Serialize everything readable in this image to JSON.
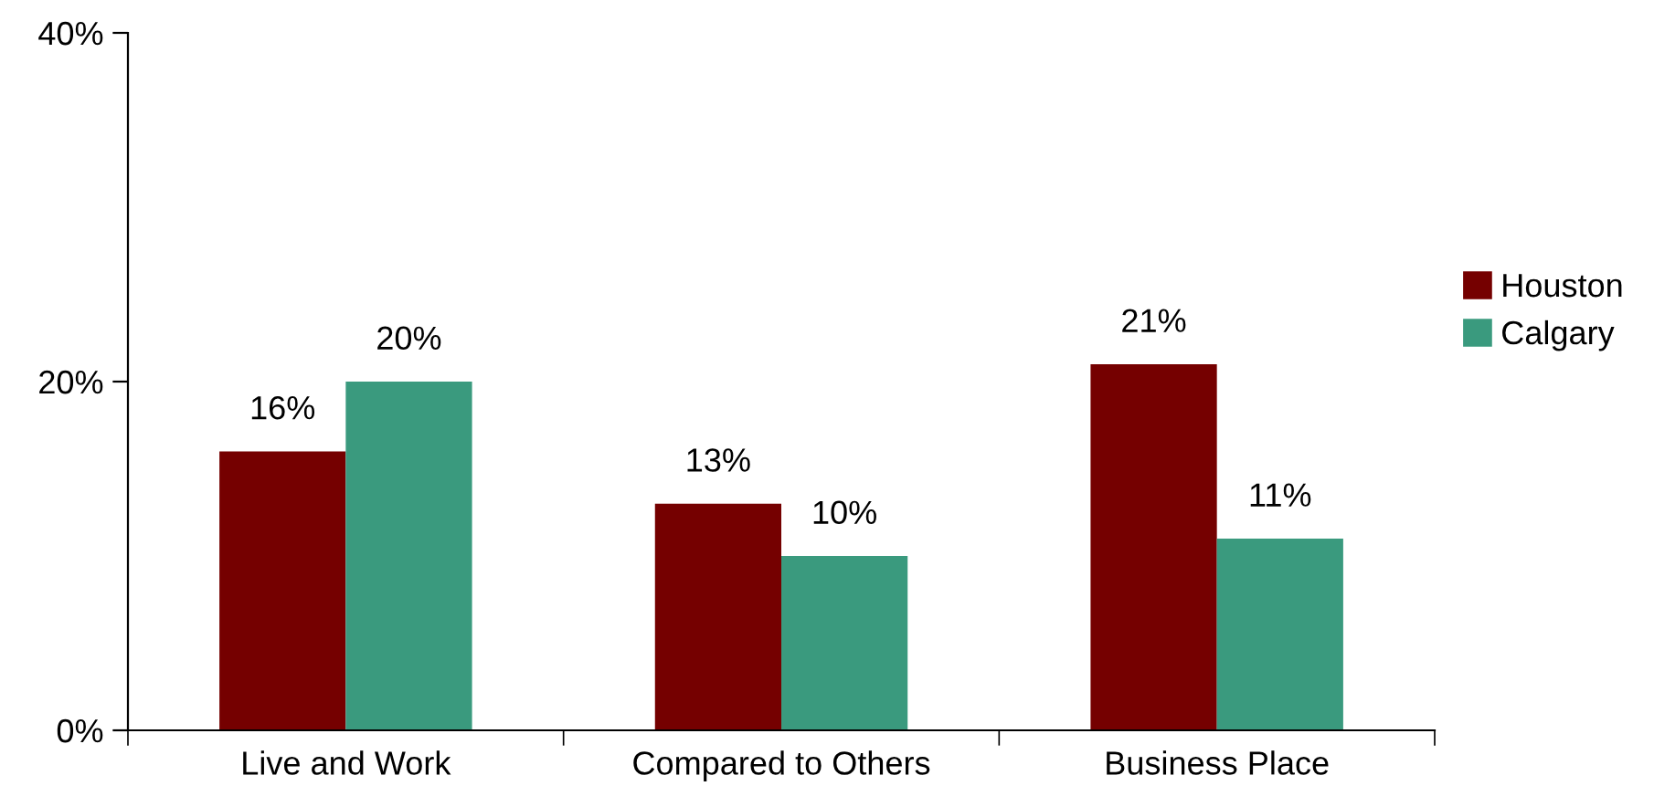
{
  "chart_data": {
    "type": "bar",
    "categories": [
      "Live and Work",
      "Compared to Others",
      "Business Place"
    ],
    "series": [
      {
        "name": "Houston",
        "color": "#750000",
        "values": [
          16,
          13,
          21
        ],
        "value_labels": [
          "16%",
          "13%",
          "21%"
        ]
      },
      {
        "name": "Calgary",
        "color": "#3a9a7e",
        "values": [
          20,
          10,
          11
        ],
        "value_labels": [
          "20%",
          "10%",
          "11%"
        ]
      }
    ],
    "ylim": [
      0,
      40
    ],
    "yticks": [
      {
        "value": 0,
        "label": "0%"
      },
      {
        "value": 20,
        "label": "20%"
      },
      {
        "value": 40,
        "label": "40%"
      }
    ],
    "grid": false,
    "legend": "right"
  }
}
